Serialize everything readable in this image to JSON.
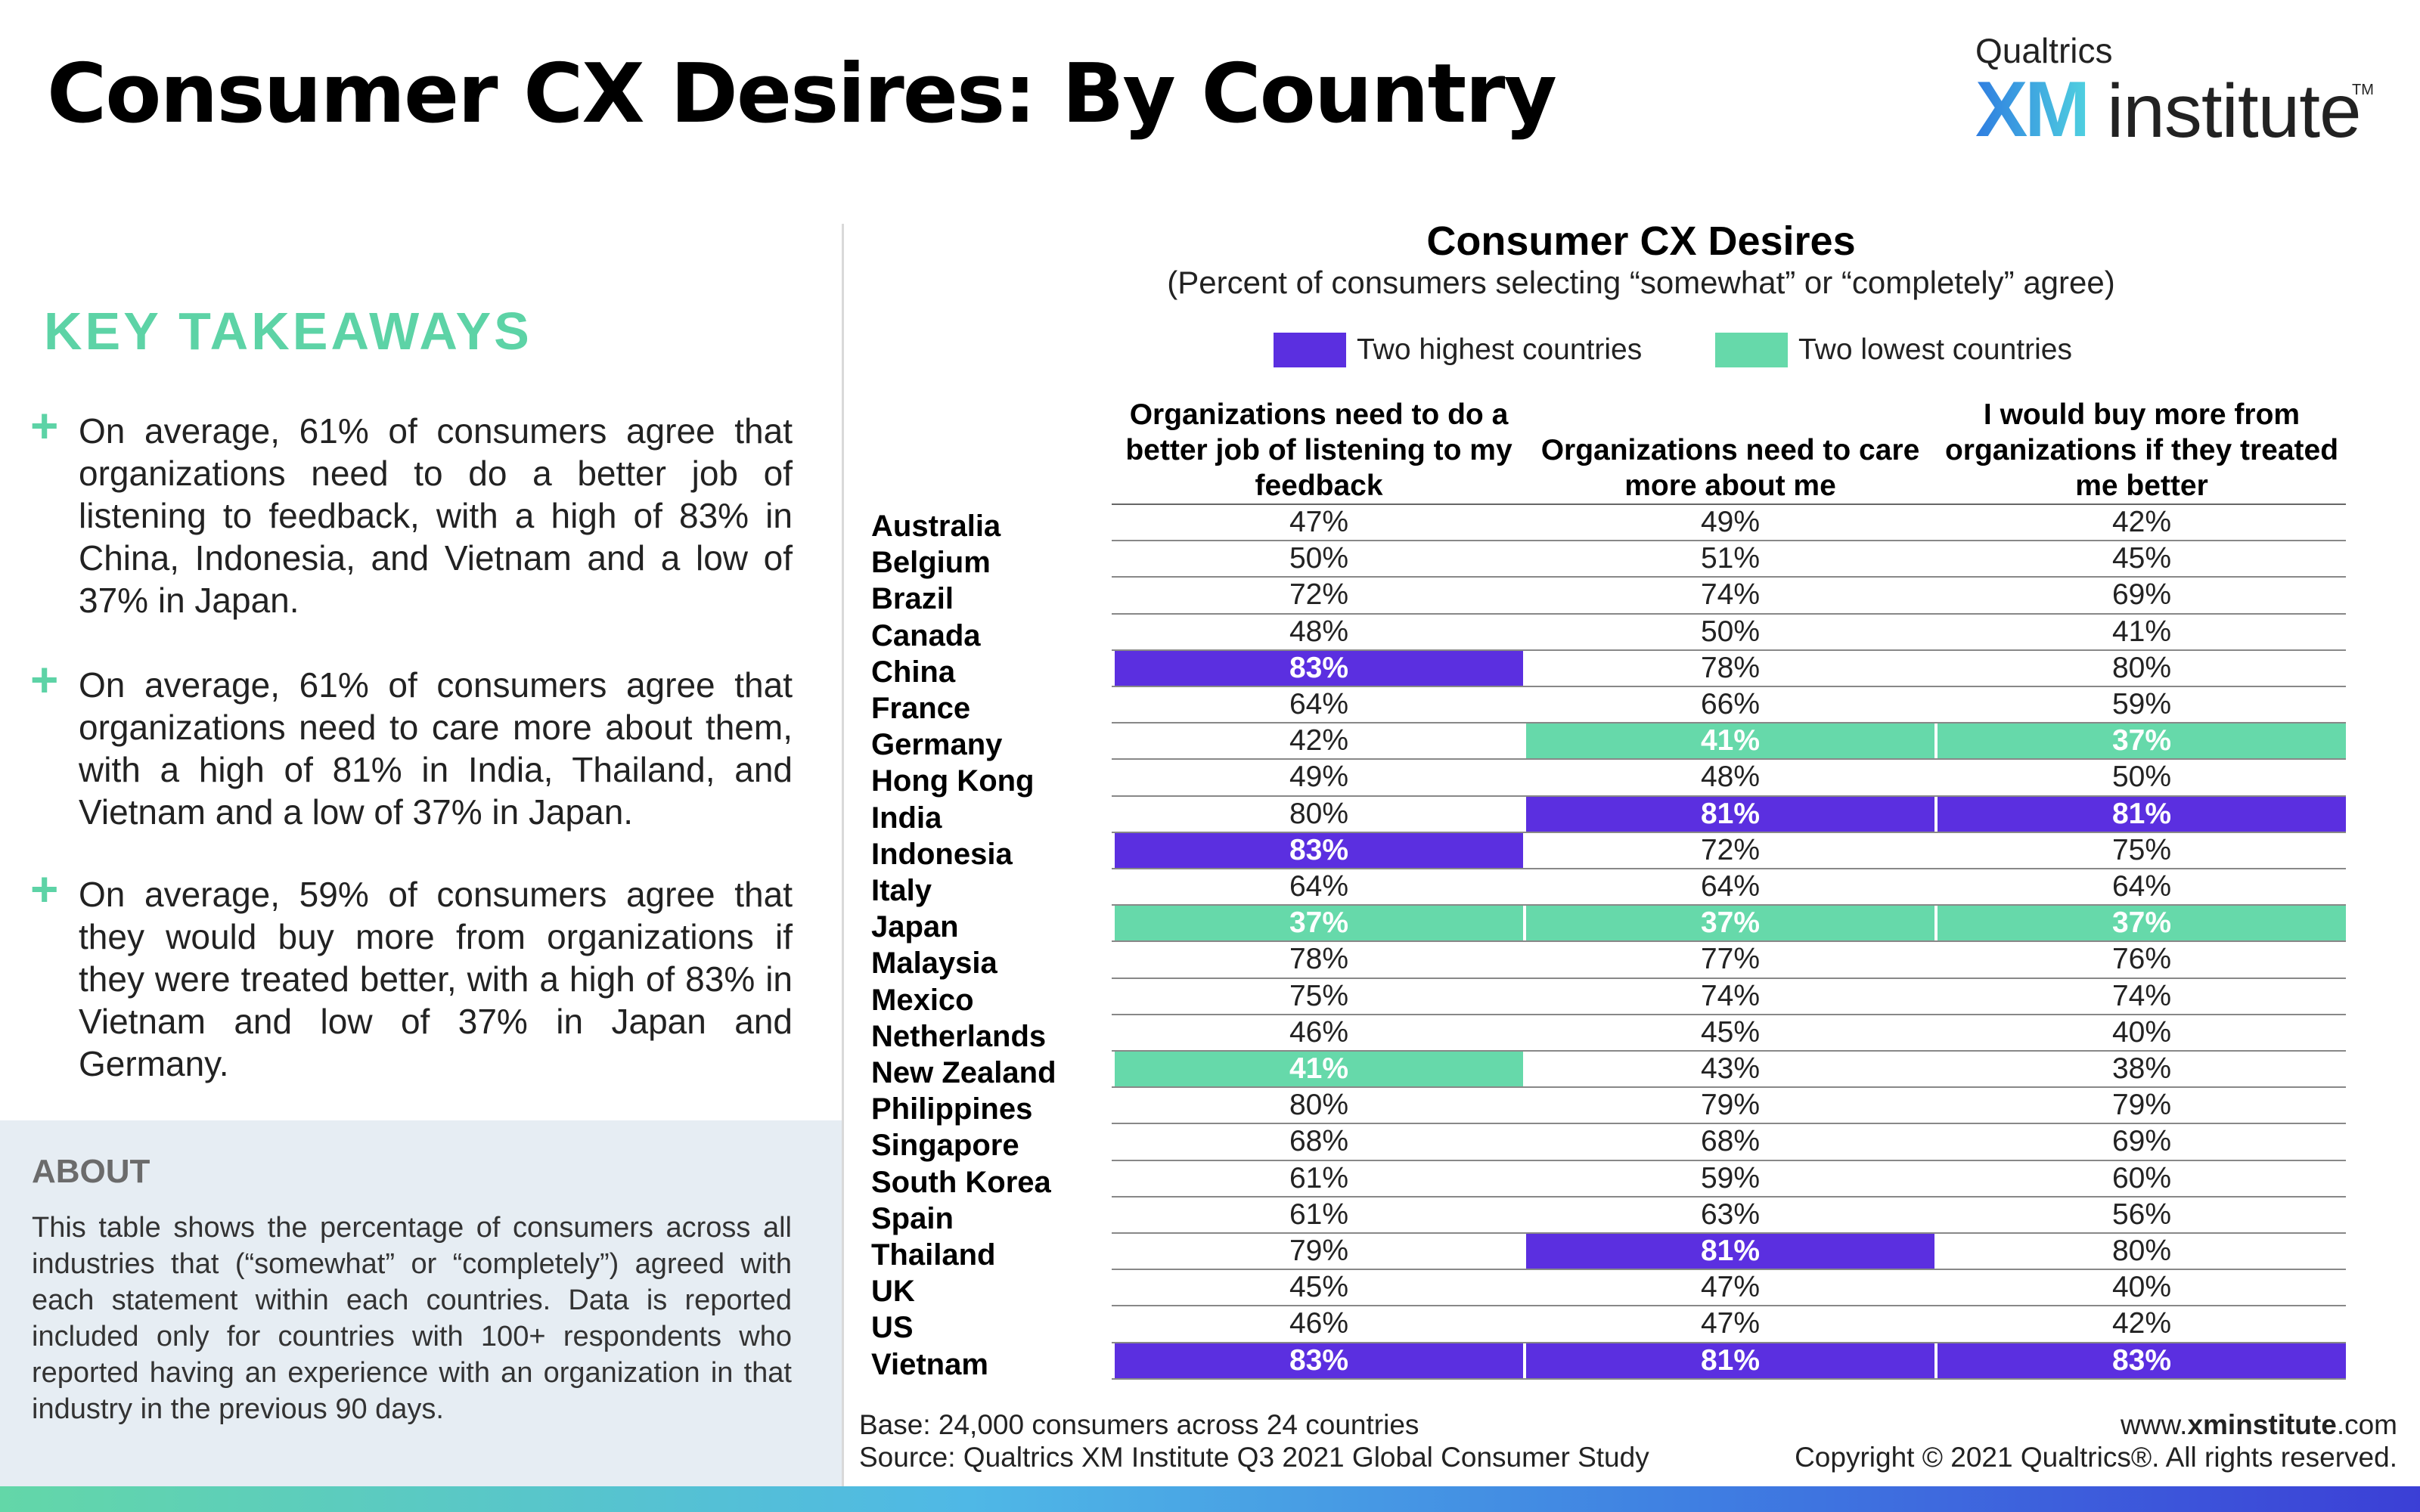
{
  "header": {
    "title": "Consumer CX Desires: By Country",
    "logo": {
      "brand": "Qualtrics",
      "mark": "XM",
      "word": "institute",
      "tm": "TM"
    }
  },
  "key_takeaways": {
    "heading": "KEY TAKEAWAYS",
    "bullet_symbol": "+",
    "items": [
      "On average, 61% of consumers agree that organizations need to do a better job of listening to feedback, with a high of 83% in China, Indonesia, and Vietnam and a low of 37% in Japan.",
      "On average, 61% of consumers agree that organizations need to care more about them, with a high of 81% in India, Thailand, and Vietnam and a low of 37% in Japan.",
      "On average, 59% of  consumers agree that they would buy more from organizations if they were treated better, with a high of 83% in Vietnam and low of 37% in Japan and Germany."
    ]
  },
  "about": {
    "heading": "ABOUT",
    "text": "This table shows the percentage of consumers across all industries that (“somewhat” or “completely”) agreed with each statement within each countries. Data is reported included only for countries with 100+ respondents who reported having an experience with an organization in that industry in the previous 90 days."
  },
  "table": {
    "title": "Consumer CX Desires",
    "subtitle": "(Percent of consumers selecting “somewhat” or “completely” agree)",
    "legend": [
      {
        "label": "Two highest countries",
        "color": "#5b2fe0"
      },
      {
        "label": "Two lowest countries",
        "color": "#66d9aa"
      }
    ],
    "columns": [
      "Organizations need to do a better job of listening to my feedback",
      "Organizations need to care more about me",
      "I would buy more from organizations if they treated me better"
    ],
    "rows": [
      {
        "country": "Australia",
        "values": [
          "47%",
          "49%",
          "42%"
        ],
        "flags": [
          "",
          "",
          ""
        ]
      },
      {
        "country": "Belgium",
        "values": [
          "50%",
          "51%",
          "45%"
        ],
        "flags": [
          "",
          "",
          ""
        ]
      },
      {
        "country": "Brazil",
        "values": [
          "72%",
          "74%",
          "69%"
        ],
        "flags": [
          "",
          "",
          ""
        ]
      },
      {
        "country": "Canada",
        "values": [
          "48%",
          "50%",
          "41%"
        ],
        "flags": [
          "",
          "",
          ""
        ]
      },
      {
        "country": "China",
        "values": [
          "83%",
          "78%",
          "80%"
        ],
        "flags": [
          "high",
          "",
          ""
        ]
      },
      {
        "country": "France",
        "values": [
          "64%",
          "66%",
          "59%"
        ],
        "flags": [
          "",
          "",
          ""
        ]
      },
      {
        "country": "Germany",
        "values": [
          "42%",
          "41%",
          "37%"
        ],
        "flags": [
          "",
          "low",
          "low"
        ]
      },
      {
        "country": "Hong Kong",
        "values": [
          "49%",
          "48%",
          "50%"
        ],
        "flags": [
          "",
          "",
          ""
        ]
      },
      {
        "country": "India",
        "values": [
          "80%",
          "81%",
          "81%"
        ],
        "flags": [
          "",
          "high",
          "high"
        ]
      },
      {
        "country": "Indonesia",
        "values": [
          "83%",
          "72%",
          "75%"
        ],
        "flags": [
          "high",
          "",
          ""
        ]
      },
      {
        "country": "Italy",
        "values": [
          "64%",
          "64%",
          "64%"
        ],
        "flags": [
          "",
          "",
          ""
        ]
      },
      {
        "country": "Japan",
        "values": [
          "37%",
          "37%",
          "37%"
        ],
        "flags": [
          "low",
          "low",
          "low"
        ]
      },
      {
        "country": "Malaysia",
        "values": [
          "78%",
          "77%",
          "76%"
        ],
        "flags": [
          "",
          "",
          ""
        ]
      },
      {
        "country": "Mexico",
        "values": [
          "75%",
          "74%",
          "74%"
        ],
        "flags": [
          "",
          "",
          ""
        ]
      },
      {
        "country": "Netherlands",
        "values": [
          "46%",
          "45%",
          "40%"
        ],
        "flags": [
          "",
          "",
          ""
        ]
      },
      {
        "country": "New Zealand",
        "values": [
          "41%",
          "43%",
          "38%"
        ],
        "flags": [
          "low",
          "",
          ""
        ]
      },
      {
        "country": "Philippines",
        "values": [
          "80%",
          "79%",
          "79%"
        ],
        "flags": [
          "",
          "",
          ""
        ]
      },
      {
        "country": "Singapore",
        "values": [
          "68%",
          "68%",
          "69%"
        ],
        "flags": [
          "",
          "",
          ""
        ]
      },
      {
        "country": "South Korea",
        "values": [
          "61%",
          "59%",
          "60%"
        ],
        "flags": [
          "",
          "",
          ""
        ]
      },
      {
        "country": "Spain",
        "values": [
          "61%",
          "63%",
          "56%"
        ],
        "flags": [
          "",
          "",
          ""
        ]
      },
      {
        "country": "Thailand",
        "values": [
          "79%",
          "81%",
          "80%"
        ],
        "flags": [
          "",
          "high",
          ""
        ]
      },
      {
        "country": "UK",
        "values": [
          "45%",
          "47%",
          "40%"
        ],
        "flags": [
          "",
          "",
          ""
        ]
      },
      {
        "country": "US",
        "values": [
          "46%",
          "47%",
          "42%"
        ],
        "flags": [
          "",
          "",
          ""
        ]
      },
      {
        "country": "Vietnam",
        "values": [
          "83%",
          "81%",
          "83%"
        ],
        "flags": [
          "high",
          "high",
          "high"
        ]
      }
    ]
  },
  "footer": {
    "base": "Base: 24,000 consumers across 24 countries",
    "source": "Source: Qualtrics XM Institute Q3 2021 Global Consumer Study",
    "site_prefix": "www.",
    "site_bold": "xminstitute",
    "site_suffix": ".com",
    "copyright": "Copyright © 2021 Qualtrics®. All rights reserved."
  },
  "colors": {
    "accent_green": "#5dd3a6",
    "high": "#5b2fe0",
    "low": "#66d9aa"
  }
}
